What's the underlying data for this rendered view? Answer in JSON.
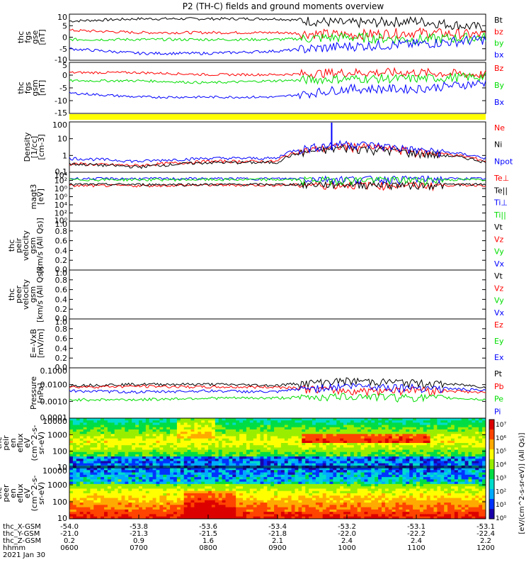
{
  "title": "P2 (TH-C) fields and ground moments overview",
  "colors": {
    "black": "#000000",
    "red": "#ff0000",
    "green": "#00dd00",
    "blue": "#0000ff",
    "yellow": "#ffff00"
  },
  "chart_data": [
    {
      "type": "line",
      "panel": "fgs-gse",
      "ylabel": [
        "thc",
        "fgs",
        "gse",
        "[nT]"
      ],
      "ylim": [
        -10,
        10
      ],
      "yticks": [
        "10",
        "5",
        "0",
        "-5",
        "-10"
      ],
      "x": [
        "0600",
        "0700",
        "0800",
        "0900",
        "1000",
        "1100",
        "1200"
      ],
      "series": [
        {
          "name": "Bt",
          "color": "#000000",
          "values": [
            7,
            8,
            8,
            8,
            6,
            7,
            4
          ]
        },
        {
          "name": "bz",
          "color": "#ff0000",
          "values": [
            3,
            2,
            2,
            2,
            1,
            2,
            1
          ]
        },
        {
          "name": "by",
          "color": "#00dd00",
          "values": [
            -1,
            -1,
            -1,
            -1,
            0,
            -1,
            0
          ]
        },
        {
          "name": "bx",
          "color": "#0000ff",
          "values": [
            -5,
            -7,
            -7,
            -6,
            -4,
            -3,
            -1
          ]
        }
      ]
    },
    {
      "type": "line",
      "panel": "fgs-gsm",
      "ylabel": [
        "thc",
        "fgs",
        "gsm",
        "[nT]"
      ],
      "ylim": [
        -17,
        8
      ],
      "yticks": [
        "5",
        "0",
        "-5",
        "-10",
        "-15"
      ],
      "x": [
        "0600",
        "0700",
        "0800",
        "0900",
        "1000",
        "1100",
        "1200"
      ],
      "series": [
        {
          "name": "Bz",
          "color": "#ff0000",
          "values": [
            3,
            3,
            2,
            2,
            3,
            3,
            2
          ]
        },
        {
          "name": "By",
          "color": "#00dd00",
          "values": [
            -1,
            -1,
            -2,
            -1,
            0,
            0,
            1
          ]
        },
        {
          "name": "Bx",
          "color": "#0000ff",
          "values": [
            -7,
            -9,
            -9,
            -9,
            -5,
            -5,
            -2
          ]
        }
      ]
    },
    {
      "type": "line",
      "panel": "density",
      "ylabel": [
        "Density",
        "[1/cc]",
        "[cm-3]"
      ],
      "ylim": [
        0.05,
        200
      ],
      "log": true,
      "yticks": [
        "100",
        "10",
        "1",
        "0.1"
      ],
      "x": [
        "0600",
        "0700",
        "0800",
        "0900",
        "1000",
        "1100",
        "1200"
      ],
      "series": [
        {
          "name": "Ne",
          "color": "#ff0000",
          "values": [
            0.2,
            0.15,
            0.3,
            0.3,
            4,
            1.5,
            0.3
          ]
        },
        {
          "name": "Ni",
          "color": "#000000",
          "values": [
            0.2,
            0.12,
            0.25,
            0.25,
            3,
            1.2,
            0.25
          ]
        },
        {
          "name": "Npot",
          "color": "#0000ff",
          "values": [
            0.5,
            0.3,
            0.5,
            0.5,
            6,
            2,
            0.5
          ]
        }
      ]
    },
    {
      "type": "line",
      "panel": "temperature",
      "ylabel": [
        "magt3",
        "[eV]"
      ],
      "ylim": [
        1,
        10000
      ],
      "log": true,
      "yticks": [
        "10⁴",
        "10²",
        "10⁰",
        "10⁰",
        "10⁴",
        "10²",
        "10⁰"
      ],
      "x": [
        "0600",
        "0700",
        "0800",
        "0900",
        "1000",
        "1100",
        "1200"
      ],
      "series": [
        {
          "name": "Te⊥",
          "color": "#ff0000",
          "values": [
            800,
            800,
            900,
            900,
            1000,
            900,
            900
          ]
        },
        {
          "name": "Te||",
          "color": "#000000",
          "values": [
            1000,
            1000,
            1000,
            1000,
            1100,
            1000,
            1000
          ]
        },
        {
          "name": "Ti⊥",
          "color": "#0000ff",
          "values": [
            3000,
            3000,
            3000,
            3000,
            3000,
            3000,
            3000
          ]
        },
        {
          "name": "Ti||",
          "color": "#00dd00",
          "values": [
            2500,
            2500,
            2500,
            2500,
            2500,
            2500,
            2500
          ]
        }
      ]
    },
    {
      "type": "line",
      "panel": "peir-velocity",
      "ylabel": [
        "thc",
        "peir",
        "velocity",
        "gsm",
        "[km/s (All Qs)]"
      ],
      "ylim": [
        0,
        1
      ],
      "yticks": [
        "1.0",
        "0.8",
        "0.6",
        "0.4",
        "0.2",
        "0.0"
      ],
      "legend": [
        "Vt",
        "Vz",
        "Vy",
        "Vx"
      ],
      "legend_colors": [
        "#000000",
        "#ff0000",
        "#00dd00",
        "#0000ff"
      ]
    },
    {
      "type": "line",
      "panel": "peer-velocity",
      "ylabel": [
        "thc",
        "peer",
        "velocity",
        "gsm",
        "[km/s (All Qs)]"
      ],
      "ylim": [
        0,
        1
      ],
      "yticks": [
        "1.0",
        "0.8",
        "0.6",
        "0.4",
        "0.2",
        "0.0"
      ],
      "legend": [
        "Vt",
        "Vz",
        "Vy",
        "Vx"
      ],
      "legend_colors": [
        "#000000",
        "#ff0000",
        "#00dd00",
        "#0000ff"
      ]
    },
    {
      "type": "line",
      "panel": "efield",
      "ylabel": [
        "E=-VxB",
        "[mV/m]"
      ],
      "ylim": [
        0,
        1
      ],
      "yticks": [
        "1.0",
        "0.8",
        "0.6",
        "0.4",
        "0.2",
        "0.0"
      ],
      "legend": [
        "Ez",
        "Ey",
        "Ex"
      ],
      "legend_colors": [
        "#ff0000",
        "#00dd00",
        "#0000ff"
      ]
    },
    {
      "type": "line",
      "panel": "pressure",
      "ylabel": [
        "Pressure",
        "[nPa]"
      ],
      "ylim": [
        0.0001,
        1
      ],
      "log": true,
      "yticks": [
        "0.1000",
        "0.0100",
        "0.0010",
        "0.0001"
      ],
      "x": [
        "0600",
        "0700",
        "0800",
        "0900",
        "1000",
        "1100",
        "1200"
      ],
      "series": [
        {
          "name": "Pt",
          "color": "#000000",
          "values": [
            0.04,
            0.05,
            0.05,
            0.04,
            0.1,
            0.07,
            0.03
          ]
        },
        {
          "name": "Pb",
          "color": "#ff0000",
          "values": [
            0.03,
            0.035,
            0.03,
            0.03,
            0.015,
            0.02,
            0.01
          ]
        },
        {
          "name": "Pe",
          "color": "#00dd00",
          "values": [
            0.003,
            0.003,
            0.004,
            0.004,
            0.006,
            0.005,
            0.003
          ]
        },
        {
          "name": "Pi",
          "color": "#0000ff",
          "values": [
            0.015,
            0.012,
            0.015,
            0.012,
            0.04,
            0.03,
            0.015
          ]
        }
      ]
    },
    {
      "type": "heatmap",
      "panel": "peir-eflux",
      "ylabel": [
        "thc",
        "peir",
        "en",
        "eflux",
        "eV",
        "(cm^2-s-",
        "sr-eV)"
      ],
      "ylim": [
        5,
        50000
      ],
      "log": true,
      "yticks": [
        "10000",
        "1000",
        "100",
        "10"
      ]
    },
    {
      "type": "heatmap",
      "panel": "peer-eflux",
      "ylabel": [
        "thc",
        "peer",
        "en",
        "eflux",
        "eV",
        "(cm^2-s-",
        "sr-eV)"
      ],
      "ylim": [
        5,
        50000
      ],
      "log": true,
      "yticks": [
        "10000",
        "1000",
        "100",
        "10"
      ],
      "colorbar": {
        "label": "[eV/(cm^2-s-sr-eV)] (All Qs)]",
        "ticks": [
          "10⁷",
          "10⁶",
          "10⁵",
          "10⁴",
          "10³",
          "10²",
          "10¹",
          "10⁰"
        ]
      }
    }
  ],
  "xaxis": {
    "rows": [
      {
        "label": "thc_X-GSM",
        "values": [
          "-54.0",
          "-53.8",
          "-53.6",
          "-53.4",
          "-53.2",
          "-53.1",
          "-53.1"
        ]
      },
      {
        "label": "thc_Y-GSM",
        "values": [
          "-21.0",
          "-21.3",
          "-21.5",
          "-21.8",
          "-22.0",
          "-22.2",
          "-22.4"
        ]
      },
      {
        "label": "thc_Z-GSM",
        "values": [
          "0.2",
          "0.9",
          "1.6",
          "2.1",
          "2.4",
          "2.4",
          "2.2"
        ]
      },
      {
        "label": "hhmm",
        "values": [
          "0600",
          "0700",
          "0800",
          "0900",
          "1000",
          "1100",
          "1200"
        ]
      }
    ],
    "date": "2021 Jan 30"
  }
}
